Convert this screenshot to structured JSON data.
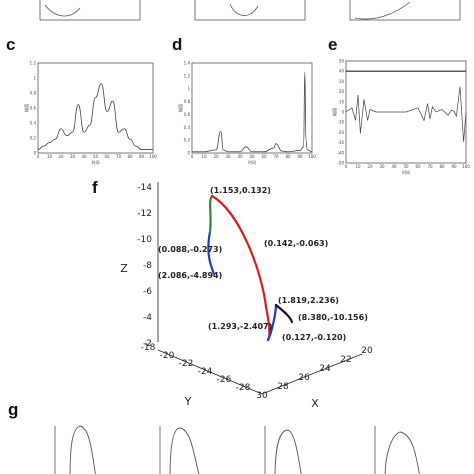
{
  "panels": {
    "c": {
      "label": "c",
      "ylabel": "幅值",
      "xlabel": "时间"
    },
    "d": {
      "label": "d",
      "ylabel": "幅值",
      "xlabel": "时间"
    },
    "e": {
      "label": "e",
      "ylabel": "幅值",
      "xlabel": "时间"
    },
    "f": {
      "label": "f"
    },
    "g": {
      "label": "g"
    }
  },
  "chart_data": [
    {
      "type": "line",
      "panel": "c",
      "x": [
        0,
        5,
        10,
        15,
        20,
        25,
        30,
        35,
        40,
        45,
        50,
        55,
        60,
        65,
        70,
        75,
        80,
        85,
        90,
        95,
        100
      ],
      "values": [
        0.05,
        0.1,
        0.15,
        0.2,
        0.35,
        0.25,
        0.3,
        0.7,
        0.3,
        0.4,
        0.8,
        1.0,
        0.6,
        0.75,
        0.3,
        0.35,
        0.2,
        0.1,
        0.05,
        0.05,
        0.05
      ],
      "xticks": [
        "0",
        "10",
        "20",
        "30",
        "40",
        "50",
        "60",
        "70",
        "80",
        "90",
        "100"
      ],
      "yticks": [
        "0",
        "0.2",
        "0.4",
        "0.6",
        "0.8",
        "1",
        "1.2"
      ],
      "xlim": [
        0,
        100
      ],
      "ylim": [
        0,
        1.3
      ]
    },
    {
      "type": "line",
      "panel": "d",
      "x": [
        0,
        10,
        20,
        24,
        26,
        30,
        40,
        45,
        50,
        60,
        68,
        70,
        75,
        80,
        90,
        93,
        94,
        95,
        96,
        100
      ],
      "values": [
        0.02,
        0.02,
        0.05,
        0.35,
        0.05,
        0.02,
        0.02,
        0.1,
        0.02,
        0.02,
        0.08,
        0.15,
        0.03,
        0.02,
        0.04,
        0.1,
        1.3,
        0.2,
        0.05,
        0.02
      ],
      "xticks": [
        "0",
        "10",
        "20",
        "30",
        "40",
        "50",
        "60",
        "70",
        "80",
        "90",
        "100"
      ],
      "yticks": [
        "0",
        "0.2",
        "0.4",
        "0.6",
        "0.8",
        "1",
        "1.2",
        "1.4"
      ],
      "xlim": [
        0,
        100
      ],
      "ylim": [
        0,
        1.45
      ]
    },
    {
      "type": "line",
      "panel": "e",
      "x": [
        0,
        5,
        8,
        10,
        12,
        15,
        18,
        20,
        25,
        30,
        40,
        50,
        60,
        65,
        68,
        70,
        72,
        75,
        80,
        85,
        88,
        90,
        92,
        95,
        98,
        100
      ],
      "values": [
        40,
        40,
        40,
        40,
        40,
        40,
        40,
        40,
        40,
        40,
        40,
        40,
        40,
        40,
        40,
        40,
        40,
        40,
        40,
        40,
        40,
        40,
        40,
        40,
        40,
        40
      ],
      "signal": [
        0,
        0.5,
        -1,
        2,
        -2.5,
        1.5,
        -1,
        0.3,
        0,
        0,
        0,
        0,
        0.5,
        -1,
        1,
        -0.8,
        0.6,
        0,
        0.3,
        -0.4,
        0.2,
        0.1,
        -0.5,
        3,
        -3.5,
        0
      ],
      "xticks": [
        "0",
        "10",
        "20",
        "30",
        "40",
        "50",
        "60",
        "70",
        "80",
        "90",
        "100"
      ],
      "yticks": [
        "-50",
        "-40",
        "-30",
        "-20",
        "-10",
        "0",
        "10",
        "20",
        "30",
        "40",
        "50"
      ],
      "xlim": [
        0,
        100
      ],
      "ylim": [
        -50,
        50
      ]
    },
    {
      "type": "line",
      "panel": "f",
      "title": "",
      "axis_labels": {
        "x": "X",
        "y": "Y",
        "z": "Z"
      },
      "z_ticks": [
        "-14",
        "-12",
        "-10",
        "-8",
        "-6",
        "-4",
        "-2"
      ],
      "y_ticks": [
        "-18",
        "-20",
        "-22",
        "-24",
        "-26",
        "-28"
      ],
      "x_ticks": [
        "20",
        "22",
        "24",
        "26",
        "28",
        "30"
      ],
      "annotations": [
        "(1.153,0.132)",
        "(0.142,-0.063)",
        "(0.088,-0.273)",
        "(2.086,-4.894)",
        "(1.819,2.236)",
        "(8.380,-10.156)",
        "(1.293,-2.407)",
        "(0.127,-0.120)"
      ],
      "segments": [
        {
          "color": "#1f3fbf",
          "name": ""
        },
        {
          "color": "#2a8a2a",
          "name": ""
        },
        {
          "color": "#d42020",
          "name": ""
        },
        {
          "color": "#1f3fbf",
          "name": ""
        },
        {
          "color": "#111111",
          "name": ""
        }
      ]
    }
  ]
}
